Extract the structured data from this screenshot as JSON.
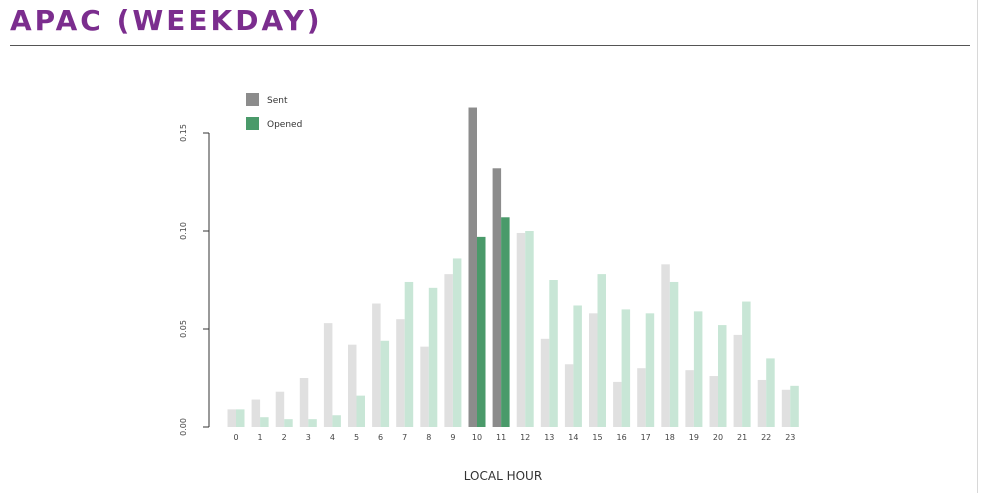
{
  "header": {
    "title": "APAC (WEEKDAY)"
  },
  "chart_data": {
    "type": "bar",
    "xlabel": "LOCAL HOUR",
    "ylabel": "",
    "ylim": [
      0,
      0.15
    ],
    "yticks": [
      "0.00",
      "0.05",
      "0.10",
      "0.15"
    ],
    "grid": false,
    "legend_position": "top-left",
    "highlighted_categories": [
      "10",
      "11"
    ],
    "categories": [
      "0",
      "1",
      "2",
      "3",
      "4",
      "5",
      "6",
      "7",
      "8",
      "9",
      "10",
      "11",
      "12",
      "13",
      "14",
      "15",
      "16",
      "17",
      "18",
      "19",
      "20",
      "21",
      "22",
      "23"
    ],
    "series": [
      {
        "name": "Sent",
        "color": "#8c8c8c",
        "muted_color": "#e0e0e0",
        "values": [
          0.009,
          0.014,
          0.018,
          0.025,
          0.053,
          0.042,
          0.063,
          0.055,
          0.041,
          0.078,
          0.163,
          0.132,
          0.099,
          0.045,
          0.032,
          0.058,
          0.023,
          0.03,
          0.083,
          0.029,
          0.026,
          0.047,
          0.024,
          0.019
        ]
      },
      {
        "name": "Opened",
        "color": "#4a9a6a",
        "muted_color": "#c8e6d6",
        "values": [
          0.009,
          0.005,
          0.004,
          0.004,
          0.006,
          0.016,
          0.044,
          0.074,
          0.071,
          0.086,
          0.097,
          0.107,
          0.1,
          0.075,
          0.062,
          0.078,
          0.06,
          0.058,
          0.074,
          0.059,
          0.052,
          0.064,
          0.035,
          0.021
        ]
      }
    ]
  }
}
